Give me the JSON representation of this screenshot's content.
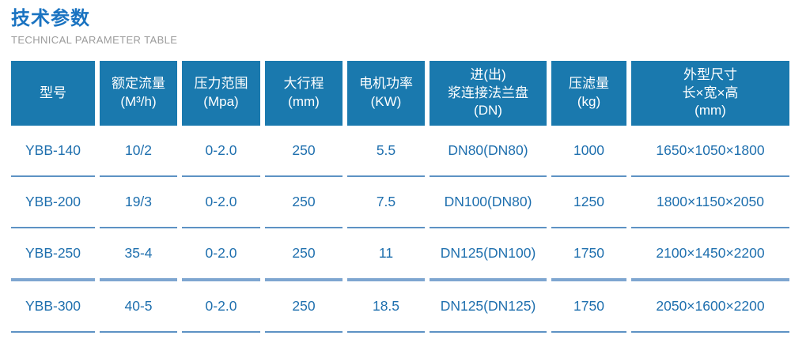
{
  "page": {
    "title": "技术参数",
    "subtitle": "TECHNICAL PARAMETER TABLE"
  },
  "colors": {
    "title_blue": "#1a73c1",
    "subtitle_gray": "#9b9b9b",
    "header_bg": "#1a79ae",
    "header_text": "#ffffff",
    "cell_text": "#1e6fae",
    "row_divider": "#5d92c4",
    "row_divider_thick": "#7ea6d0"
  },
  "table": {
    "headers": [
      {
        "key": "model",
        "lines": [
          "型号"
        ]
      },
      {
        "key": "rated-flow",
        "lines": [
          "额定流量",
          "(M³/h)"
        ]
      },
      {
        "key": "pressure-range",
        "lines": [
          "压力范围",
          "(Mpa)"
        ]
      },
      {
        "key": "max-stroke",
        "lines": [
          "大行程",
          "(mm)"
        ]
      },
      {
        "key": "motor-power",
        "lines": [
          "电机功率",
          "(KW)"
        ]
      },
      {
        "key": "slurry-flange",
        "lines": [
          "进(出)",
          "浆连接法兰盘",
          "(DN)"
        ]
      },
      {
        "key": "filter-capacity",
        "lines": [
          "压滤量",
          "(kg)"
        ]
      },
      {
        "key": "dimensions",
        "lines": [
          "外型尺寸",
          "长×宽×高",
          "(mm)"
        ]
      }
    ],
    "rows": [
      [
        "YBB-140",
        "10/2",
        "0-2.0",
        "250",
        "5.5",
        "DN80(DN80)",
        "1000",
        "1650×1050×1800"
      ],
      [
        "YBB-200",
        "19/3",
        "0-2.0",
        "250",
        "7.5",
        "DN100(DN80)",
        "1250",
        "1800×1150×2050"
      ],
      [
        "YBB-250",
        "35-4",
        "0-2.0",
        "250",
        "11",
        "DN125(DN100)",
        "1750",
        "2100×1450×2200"
      ],
      [
        "YBB-300",
        "40-5",
        "0-2.0",
        "250",
        "18.5",
        "DN125(DN125)",
        "1750",
        "2050×1600×2200"
      ]
    ]
  }
}
